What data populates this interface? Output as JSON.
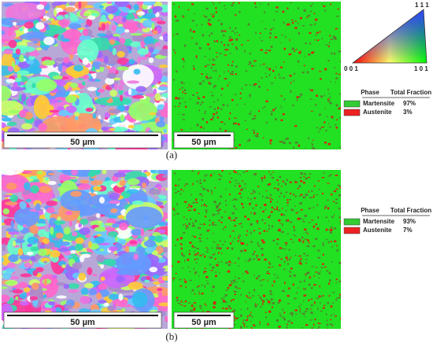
{
  "ipf_key": {
    "top": "1 1 1",
    "left": "0 0 1",
    "right": "1 0 1"
  },
  "panels": [
    {
      "label": "(a)",
      "ipf_scale": "50 µm",
      "phase_scale": "50 µm",
      "legend": {
        "header": [
          "Phase",
          "Total Fraction"
        ],
        "rows": [
          [
            "Martensite",
            "97%"
          ],
          [
            "Austenite",
            "3%"
          ]
        ]
      }
    },
    {
      "label": "(b)",
      "ipf_scale": "50 µm",
      "phase_scale": "50 µm",
      "legend": {
        "header": [
          "Phase",
          "Total Fraction"
        ],
        "rows": [
          [
            "Martensite",
            "93%"
          ],
          [
            "Austenite",
            "7%"
          ]
        ]
      }
    }
  ]
}
